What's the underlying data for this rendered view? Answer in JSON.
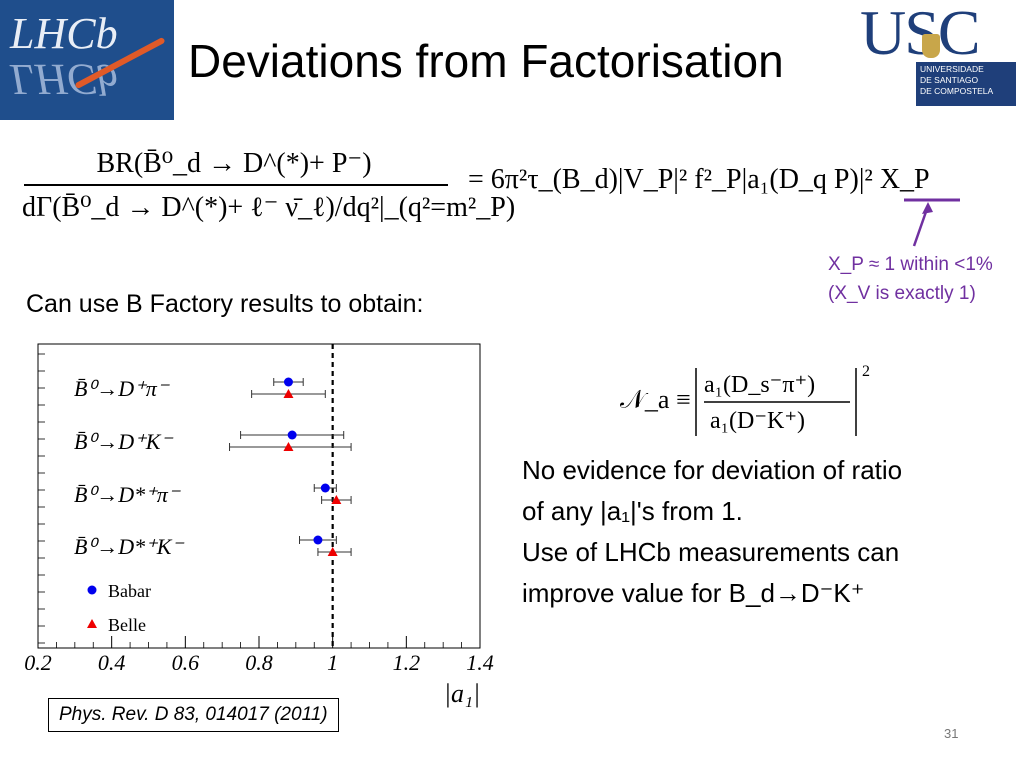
{
  "slide": {
    "title": "Deviations from Factorisation",
    "page_number": "31"
  },
  "logos": {
    "lhcb_text": "LHCb",
    "usc_letters": "USC",
    "usc_sub": [
      "UNIVERSIDADE",
      "DE SANTIAGO",
      "DE COMPOSTELA"
    ]
  },
  "equation": {
    "numerator": "BR(B̄⁰_d → D^(*)+ P⁻)",
    "denominator": "dΓ(B̄⁰_d → D^(*)+ ℓ⁻ ν̄_ℓ)/dq²|_(q²=m²_P)",
    "rhs": "= 6π²τ_(B_d)|V_P|² f²_P|a₁(D_q P)|² X_P"
  },
  "xp_note": {
    "line1": "X_P ≈ 1 within <1%",
    "line2": "(X_V is exactly 1)"
  },
  "intro": "Can use B Factory results to obtain:",
  "na_equation": {
    "lhs": "𝒩_a ≡",
    "numerator": "a₁(D_s⁻π⁺)",
    "denominator": "a₁(D⁻K⁺)",
    "power": "2"
  },
  "conclusion": {
    "line1": "No evidence for deviation of ratio",
    "line2": "of any |a₁|'s from 1.",
    "line3": "Use of LHCb measurements can",
    "line4": "improve value for B_d→D⁻K⁺"
  },
  "citation": "Phys. Rev. D 83, 014017 (2011)",
  "chart_data": {
    "type": "scatter",
    "xlabel": "|a₁|",
    "xlim": [
      0.2,
      1.4
    ],
    "x_ticks": [
      "0.2",
      "0.4",
      "0.6",
      "0.8",
      "1",
      "1.2",
      "1.4"
    ],
    "reference_line_x": 1,
    "categories": [
      "B̄⁰→D⁺π⁻",
      "B̄⁰→D⁺K⁻",
      "B̄⁰→D*⁺π⁻",
      "B̄⁰→D*⁺K⁻"
    ],
    "series": [
      {
        "name": "Babar",
        "color": "#0000ee",
        "marker": "circle",
        "points": [
          {
            "x": 0.88,
            "xerr_stat": [
              0.84,
              0.92
            ],
            "xerr_tot": [
              0.84,
              0.92
            ]
          },
          {
            "x": 0.89,
            "xerr_stat": [
              0.75,
              1.03
            ],
            "xerr_tot": [
              0.75,
              1.03
            ]
          },
          {
            "x": 0.98,
            "xerr_stat": [
              0.96,
              1.0
            ],
            "xerr_tot": [
              0.95,
              1.01
            ]
          },
          {
            "x": 0.96,
            "xerr_stat": [
              0.93,
              0.99
            ],
            "xerr_tot": [
              0.91,
              1.01
            ]
          }
        ]
      },
      {
        "name": "Belle",
        "color": "#ee0000",
        "marker": "triangle",
        "points": [
          {
            "x": 0.88,
            "xerr_stat": [
              0.81,
              0.95
            ],
            "xerr_tot": [
              0.78,
              0.98
            ]
          },
          {
            "x": 0.88,
            "xerr_stat": [
              0.78,
              0.98
            ],
            "xerr_tot": [
              0.72,
              1.05
            ]
          },
          {
            "x": 1.01,
            "xerr_stat": [
              0.98,
              1.04
            ],
            "xerr_tot": [
              0.97,
              1.05
            ]
          },
          {
            "x": 1.0,
            "xerr_stat": [
              0.97,
              1.03
            ],
            "xerr_tot": [
              0.96,
              1.05
            ]
          }
        ]
      }
    ],
    "legend": [
      "Babar",
      "Belle"
    ],
    "legend_position": "bottom-left"
  }
}
